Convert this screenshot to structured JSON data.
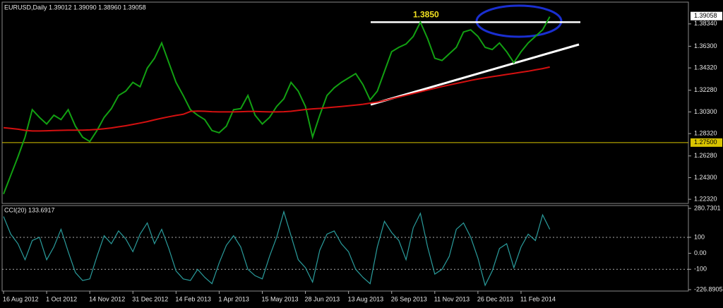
{
  "chart_data": [
    {
      "type": "line",
      "title": "EURUSD,Daily  1.39012 1.39090 1.38960 1.39058",
      "categories": [
        "16 Aug 2012",
        null,
        null,
        null,
        null,
        null,
        "1 Oct 2012",
        null,
        null,
        null,
        null,
        null,
        "14 Nov 2012",
        null,
        null,
        null,
        null,
        null,
        "31 Dec 2012",
        null,
        null,
        null,
        null,
        null,
        "14 Feb 2013",
        null,
        null,
        null,
        null,
        null,
        "1 Apr 2013",
        null,
        null,
        null,
        null,
        null,
        "15 May 2013",
        null,
        null,
        null,
        null,
        null,
        "28 Jun 2013",
        null,
        null,
        null,
        null,
        null,
        "13 Aug 2013",
        null,
        null,
        null,
        null,
        null,
        "26 Sep 2013",
        null,
        null,
        null,
        null,
        null,
        "11 Nov 2013",
        null,
        null,
        null,
        null,
        null,
        "26 Dec 2013",
        null,
        null,
        null,
        null,
        null,
        "11 Feb 2014",
        null,
        null,
        null,
        null
      ],
      "series": [
        {
          "color": "#12a012",
          "values": [
            1.228,
            1.245,
            1.262,
            1.28,
            1.305,
            1.298,
            1.292,
            1.3,
            1.296,
            1.305,
            1.29,
            1.28,
            1.276,
            1.286,
            1.298,
            1.306,
            1.318,
            1.322,
            1.33,
            1.326,
            1.343,
            1.352,
            1.366,
            1.348,
            1.33,
            1.318,
            1.305,
            1.3,
            1.296,
            1.286,
            1.284,
            1.29,
            1.305,
            1.306,
            1.318,
            1.3,
            1.292,
            1.298,
            1.308,
            1.315,
            1.33,
            1.322,
            1.308,
            1.28,
            1.3,
            1.318,
            1.325,
            1.33,
            1.334,
            1.338,
            1.328,
            1.314,
            1.322,
            1.34,
            1.358,
            1.362,
            1.365,
            1.372,
            1.385,
            1.37,
            1.352,
            1.35,
            1.356,
            1.362,
            1.376,
            1.378,
            1.372,
            1.362,
            1.36,
            1.366,
            1.358,
            1.348,
            1.358,
            1.366,
            1.372,
            1.378,
            1.39
          ]
        },
        {
          "color": "#d41010",
          "values": [
            1.2886,
            1.288,
            1.2872,
            1.2862,
            1.2856,
            1.2856,
            1.2858,
            1.286,
            1.2862,
            1.2864,
            1.2864,
            1.2864,
            1.2866,
            1.287,
            1.2876,
            1.2884,
            1.2894,
            1.2904,
            1.2916,
            1.2928,
            1.2942,
            1.2958,
            1.2972,
            1.2986,
            1.2998,
            1.3008,
            1.3034,
            1.3038,
            1.3036,
            1.3032,
            1.303,
            1.303,
            1.303,
            1.3032,
            1.3034,
            1.3034,
            1.3032,
            1.303,
            1.303,
            1.3032,
            1.3036,
            1.3044,
            1.3052,
            1.3058,
            1.3062,
            1.3068,
            1.3074,
            1.308,
            1.3086,
            1.3092,
            1.31,
            1.311,
            1.312,
            1.3134,
            1.315,
            1.3166,
            1.3182,
            1.3198,
            1.3214,
            1.323,
            1.3246,
            1.3262,
            1.3276,
            1.329,
            1.3304,
            1.3318,
            1.333,
            1.3342,
            1.3352,
            1.3362,
            1.3372,
            1.3382,
            1.3392,
            1.3402,
            1.3414,
            1.3426,
            1.344
          ]
        }
      ],
      "ylim": [
        1.2194,
        1.402
      ],
      "yticks": [
        {
          "value": 1.3834,
          "label": "1.38340"
        },
        {
          "value": 1.363,
          "label": "1.36300"
        },
        {
          "value": 1.3432,
          "label": "1.34320"
        },
        {
          "value": 1.3228,
          "label": "1.32280"
        },
        {
          "value": 1.303,
          "label": "1.30300"
        },
        {
          "value": 1.2832,
          "label": "1.28320"
        },
        {
          "value": 1.2628,
          "label": "1.26280"
        },
        {
          "value": 1.243,
          "label": "1.24300"
        },
        {
          "value": 1.2232,
          "label": "1.22320"
        }
      ],
      "current_price": 1.39058,
      "level": {
        "value": 1.275,
        "label": "1.27500"
      },
      "annotation": {
        "value": 1.385,
        "label": "1.3850"
      }
    },
    {
      "type": "line",
      "title": "CCI(20) 133.6917",
      "series": [
        {
          "color": "#2a9c9c",
          "values": [
            230,
            120,
            60,
            -40,
            80,
            100,
            -40,
            40,
            150,
            10,
            -120,
            -170,
            -160,
            -20,
            110,
            60,
            140,
            90,
            10,
            120,
            190,
            60,
            150,
            30,
            -110,
            -160,
            -170,
            -100,
            -150,
            -190,
            -60,
            50,
            110,
            40,
            -100,
            -140,
            -160,
            -20,
            100,
            260,
            110,
            -40,
            -90,
            -180,
            20,
            120,
            140,
            60,
            10,
            -100,
            -150,
            -190,
            40,
            200,
            130,
            80,
            -40,
            160,
            250,
            40,
            -130,
            -100,
            -20,
            150,
            190,
            100,
            -30,
            -200,
            -110,
            30,
            60,
            -90,
            40,
            120,
            80,
            240,
            150
          ]
        }
      ],
      "ylim": [
        -226.8905,
        280.7301
      ],
      "yticks": [
        280.7301,
        100,
        {
          "value": 0,
          "label": "0.00"
        },
        -100,
        -226.8905
      ],
      "levels": [
        100,
        -100
      ]
    }
  ]
}
